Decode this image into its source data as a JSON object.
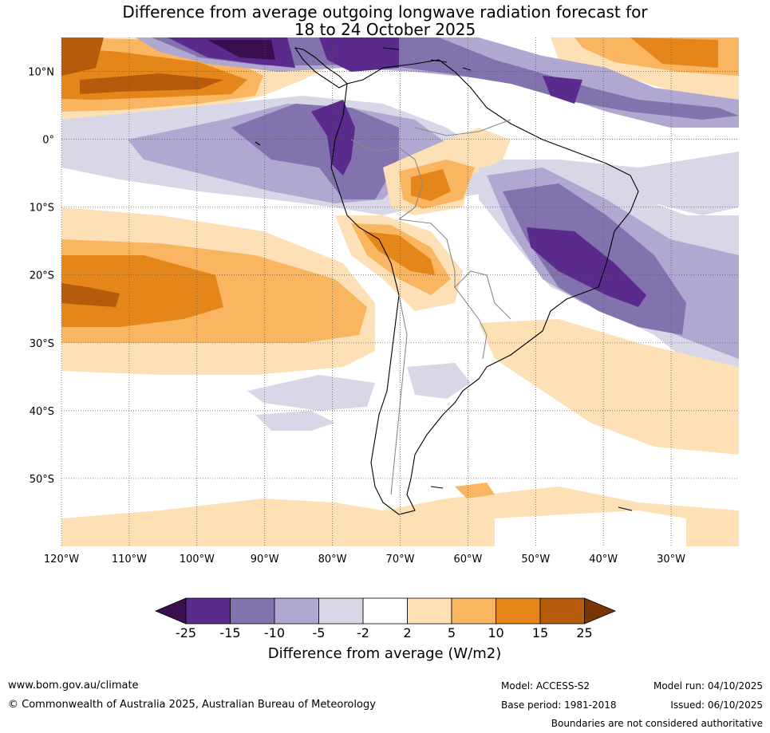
{
  "title_line1": "Difference from average outgoing longwave radiation forecast for",
  "title_line2": "18 to 24 October 2025",
  "lat_labels": [
    "10°N",
    "0°",
    "10°S",
    "20°S",
    "30°S",
    "40°S",
    "50°S"
  ],
  "lon_labels": [
    "120°W",
    "110°W",
    "100°W",
    "90°W",
    "80°W",
    "70°W",
    "60°W",
    "50°W",
    "40°W",
    "30°W"
  ],
  "lat_values": [
    10,
    0,
    -10,
    -20,
    -30,
    -40,
    -50
  ],
  "lon_values": [
    -120,
    -110,
    -100,
    -90,
    -80,
    -70,
    -60,
    -50,
    -40,
    -30
  ],
  "map_extent": {
    "lon": [
      -120,
      -20
    ],
    "lat": [
      -60,
      15
    ]
  },
  "colorbar": {
    "ticks": [
      "-25",
      "-15",
      "-10",
      "-5",
      "-2",
      "2",
      "5",
      "10",
      "15",
      "25"
    ],
    "colors": [
      "#3a0e4f",
      "#5a2a8c",
      "#8272ad",
      "#b0a8d0",
      "#d8d7e8",
      "#ffffff",
      "#fde0b5",
      "#f9b55f",
      "#e4861a",
      "#b65a0b",
      "#7a3505"
    ],
    "label": "Difference from average (W/m2)"
  },
  "footer": {
    "url": "www.bom.gov.au/climate",
    "copyright": "© Commonwealth of Australia 2025, Australian Bureau of Meteorology",
    "model": "Model: ACCESS-S2",
    "model_run": "Model run: 04/10/2025",
    "base_period": "Base period: 1981-2018",
    "issued": "Issued: 06/10/2025",
    "disclaimer": "Boundaries are not considered authoritative"
  }
}
